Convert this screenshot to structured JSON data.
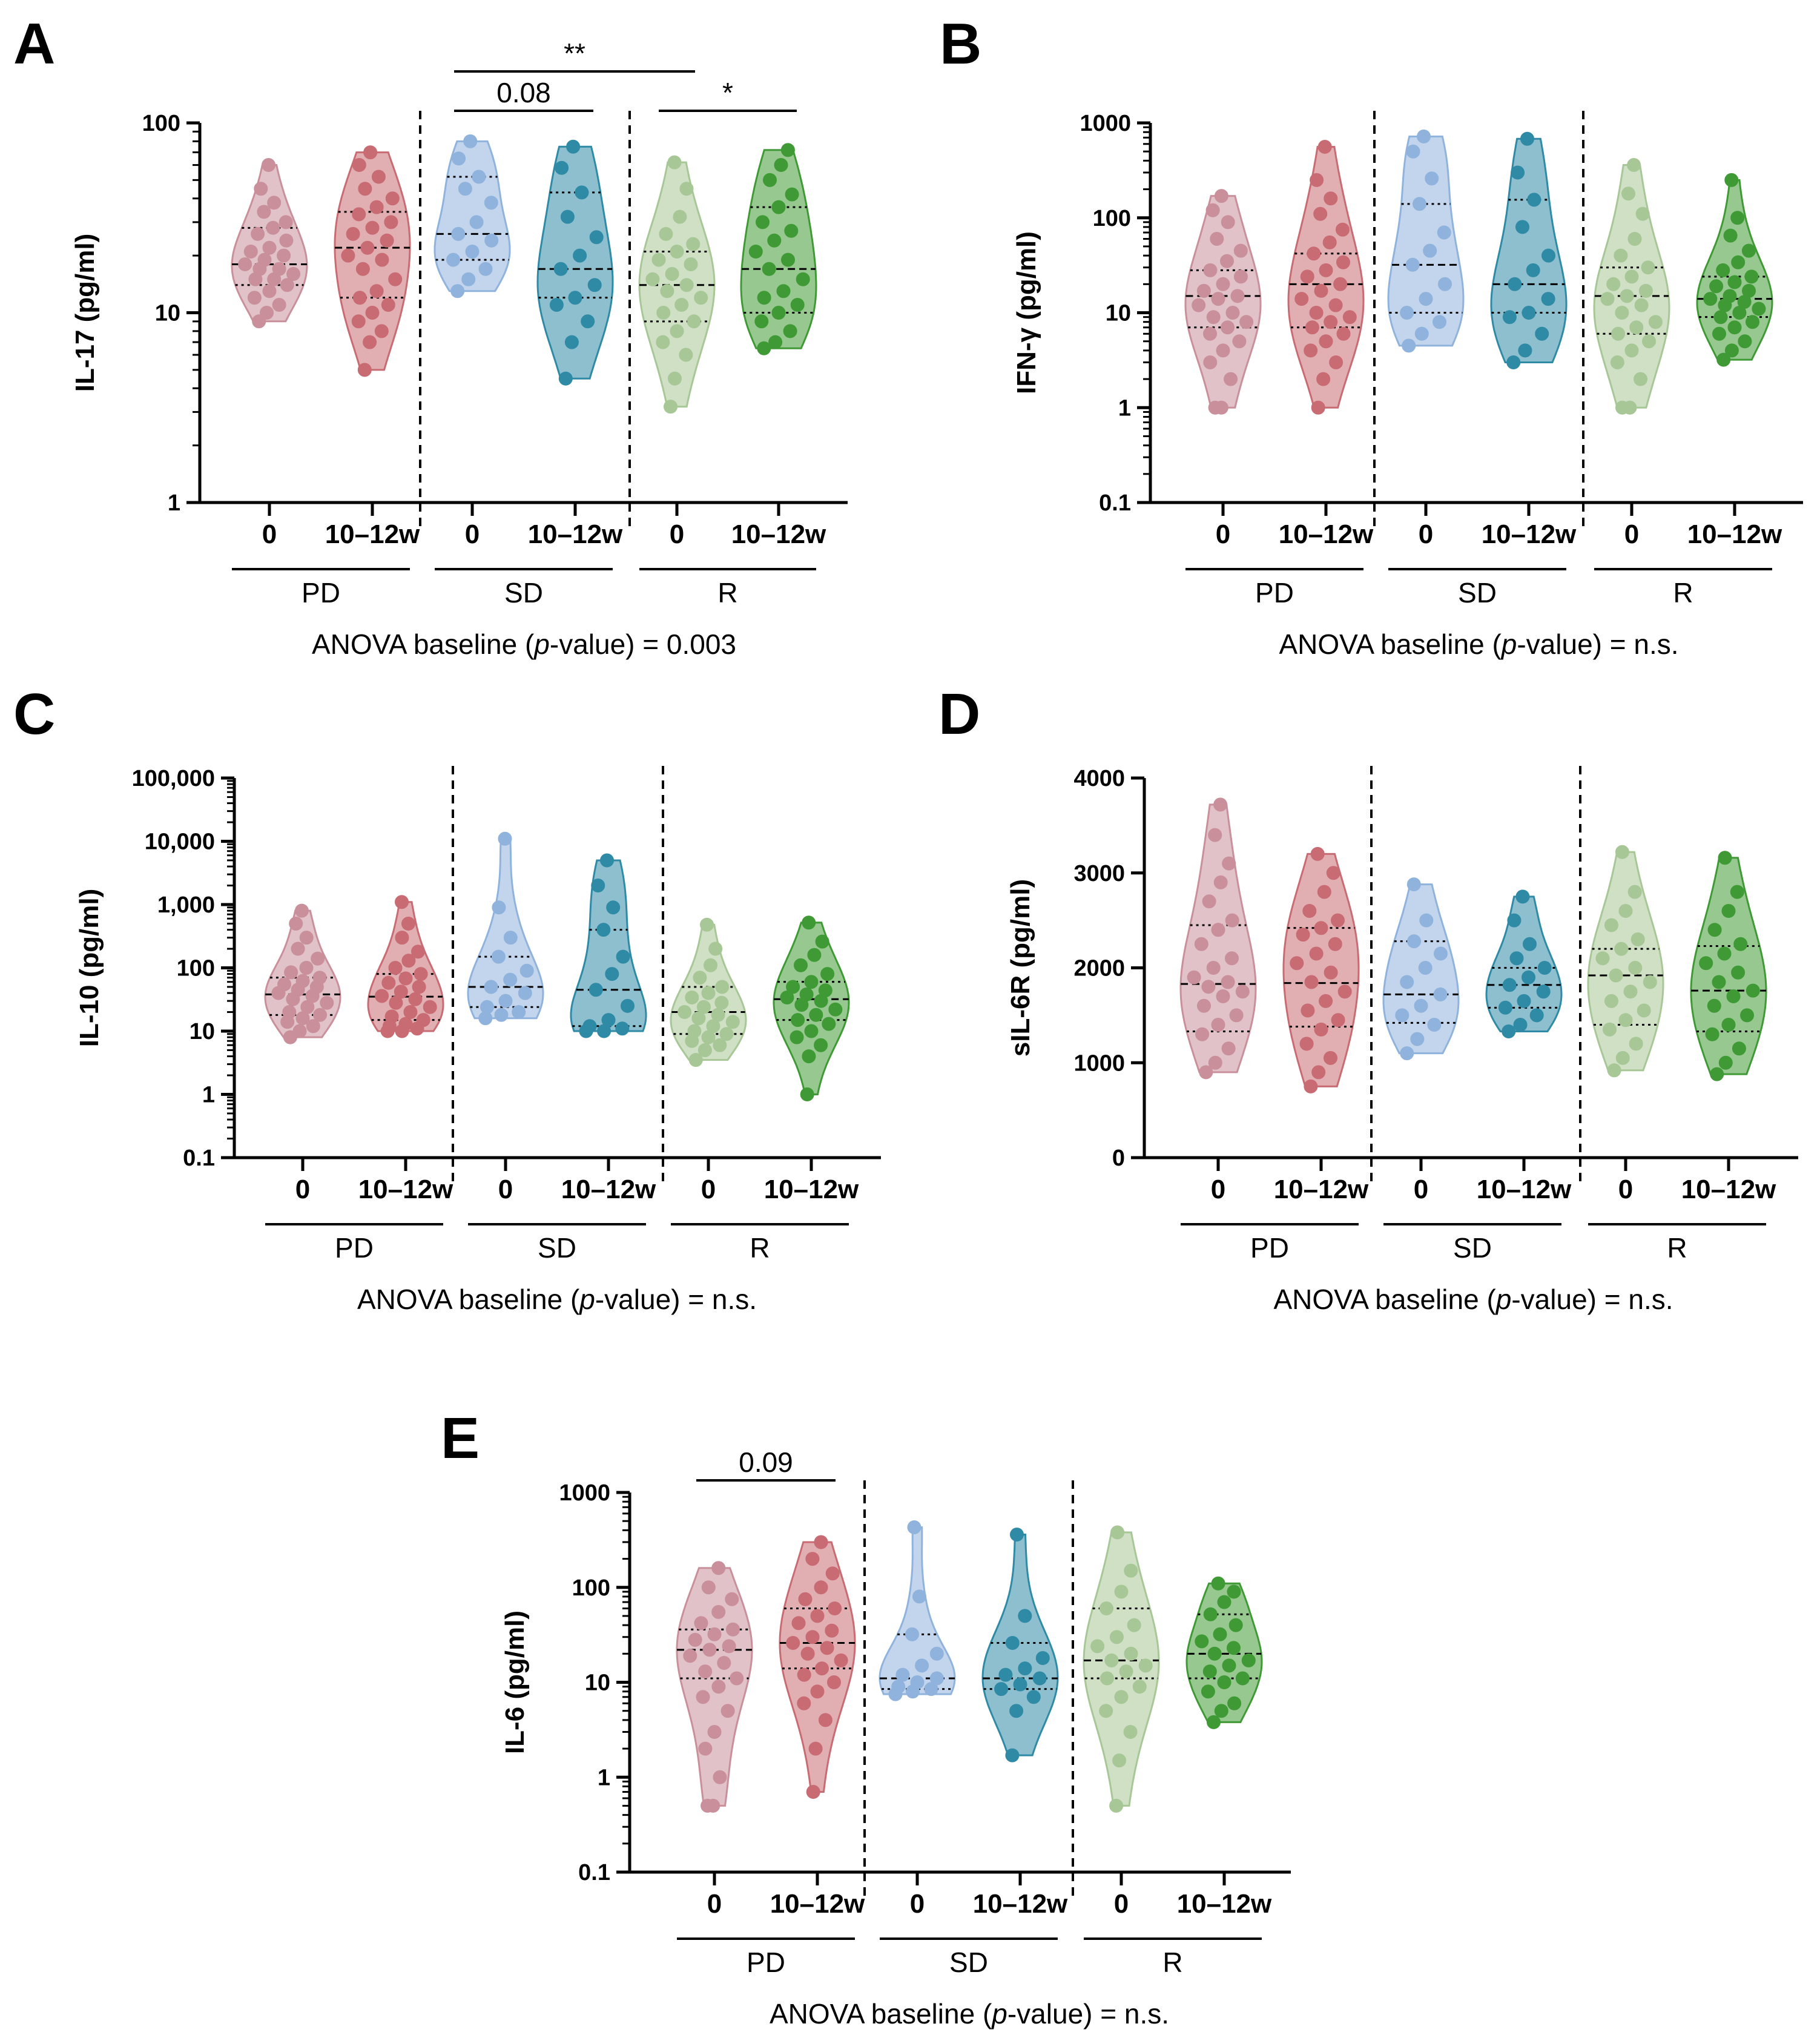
{
  "figure": {
    "colors": {
      "PD_0": "#c98f9a",
      "PD_w": "#c86b73",
      "SD_0": "#8fb3dc",
      "SD_w": "#2f8aa6",
      "R_0": "#a7c796",
      "R_w": "#3f9a35"
    },
    "x_categories": [
      "0",
      "10–12w",
      "0",
      "10–12w",
      "0",
      "10–12w"
    ],
    "groups": [
      "PD",
      "SD",
      "R"
    ]
  },
  "chart_data": [
    {
      "type": "violin",
      "panel": "A",
      "ylabel": "IL-17 (pg/ml)",
      "yscale": "log",
      "ylim": [
        1,
        100
      ],
      "yticks": [
        "1",
        "10",
        "100"
      ],
      "ytick_values": [
        1,
        10,
        100
      ],
      "footnote_pre": "ANOVA baseline (",
      "footnote_p": "p",
      "footnote_post": "-value) = 0.003",
      "brackets": [
        {
          "from": 2,
          "to": 3,
          "label": "0.08",
          "level": 1
        },
        {
          "from": 2,
          "to": 4,
          "label": "**",
          "level": 2
        },
        {
          "from": 4,
          "to": 5,
          "label": "*",
          "level": 1
        }
      ],
      "series": [
        {
          "name": "PD 0",
          "min": 9,
          "max": 60,
          "median": 18,
          "q1": 14,
          "q3": 28,
          "values": [
            9,
            10,
            11,
            12,
            13,
            14,
            15,
            15,
            16,
            17,
            17,
            18,
            19,
            20,
            21,
            22,
            24,
            26,
            28,
            30,
            34,
            38,
            45,
            60
          ]
        },
        {
          "name": "PD 10-12w",
          "min": 5,
          "max": 70,
          "median": 22,
          "q1": 12,
          "q3": 34,
          "values": [
            5,
            7,
            8,
            9,
            10,
            11,
            12,
            13,
            15,
            17,
            19,
            20,
            22,
            24,
            26,
            28,
            30,
            33,
            36,
            40,
            45,
            52,
            60,
            70
          ]
        },
        {
          "name": "SD 0",
          "min": 13,
          "max": 80,
          "median": 26,
          "q1": 19,
          "q3": 52,
          "values": [
            13,
            15,
            17,
            19,
            21,
            24,
            26,
            30,
            38,
            45,
            52,
            65,
            80
          ]
        },
        {
          "name": "SD 10-12w",
          "min": 4.5,
          "max": 75,
          "median": 17,
          "q1": 12,
          "q3": 43,
          "values": [
            4.5,
            7,
            9,
            11,
            12,
            14,
            17,
            20,
            25,
            32,
            43,
            58,
            75
          ]
        },
        {
          "name": "R 0",
          "min": 3.2,
          "max": 62,
          "median": 14,
          "q1": 9,
          "q3": 21,
          "values": [
            3.2,
            4.5,
            6,
            7,
            8,
            9,
            10,
            11,
            12,
            13,
            14,
            15,
            16,
            18,
            19,
            21,
            23,
            26,
            32,
            45,
            62
          ]
        },
        {
          "name": "R 10-12w",
          "min": 6.5,
          "max": 72,
          "median": 17,
          "q1": 10,
          "q3": 36,
          "values": [
            6.5,
            7,
            8,
            9,
            10,
            11,
            12,
            13,
            15,
            17,
            19,
            21,
            24,
            27,
            30,
            36,
            42,
            50,
            60,
            72
          ]
        }
      ]
    },
    {
      "type": "violin",
      "panel": "B",
      "ylabel": "IFN-γ (pg/ml)",
      "yscale": "log",
      "ylim": [
        0.1,
        1000
      ],
      "yticks": [
        "0.1",
        "1",
        "10",
        "100",
        "1000"
      ],
      "ytick_values": [
        0.1,
        1,
        10,
        100,
        1000
      ],
      "footnote_pre": "ANOVA baseline (",
      "footnote_p": "p",
      "footnote_post": "-value) = n.s.",
      "brackets": [],
      "series": [
        {
          "name": "PD 0",
          "min": 1,
          "max": 170,
          "median": 15,
          "q1": 7,
          "q3": 28,
          "values": [
            1,
            1,
            2,
            3,
            4,
            5,
            6,
            7,
            8,
            9,
            10,
            12,
            14,
            15,
            17,
            20,
            24,
            28,
            35,
            45,
            60,
            90,
            120,
            170
          ]
        },
        {
          "name": "PD 10-12w",
          "min": 1,
          "max": 560,
          "median": 20,
          "q1": 7,
          "q3": 42,
          "values": [
            1,
            2,
            3,
            4,
            5,
            6,
            7,
            8,
            9,
            10,
            12,
            14,
            17,
            20,
            24,
            28,
            34,
            42,
            55,
            75,
            110,
            160,
            250,
            560
          ]
        },
        {
          "name": "SD 0",
          "min": 4.5,
          "max": 720,
          "median": 32,
          "q1": 10,
          "q3": 140,
          "values": [
            4.5,
            6,
            8,
            10,
            14,
            20,
            32,
            45,
            70,
            140,
            260,
            500,
            720
          ]
        },
        {
          "name": "SD 10-12w",
          "min": 3,
          "max": 680,
          "median": 20,
          "q1": 10,
          "q3": 155,
          "values": [
            3,
            4,
            6,
            9,
            10,
            14,
            20,
            28,
            40,
            80,
            155,
            300,
            680
          ]
        },
        {
          "name": "R 0",
          "min": 1,
          "max": 360,
          "median": 15,
          "q1": 6,
          "q3": 30,
          "values": [
            1,
            1,
            2,
            3,
            4,
            5,
            6,
            7,
            8,
            10,
            12,
            14,
            15,
            17,
            20,
            24,
            30,
            40,
            60,
            110,
            180,
            360
          ]
        },
        {
          "name": "R 10-12w",
          "min": 3.2,
          "max": 250,
          "median": 14,
          "q1": 9,
          "q3": 24,
          "values": [
            3.2,
            4,
            5,
            6,
            7,
            8,
            9,
            10,
            11,
            12,
            13,
            14,
            15,
            17,
            19,
            21,
            24,
            28,
            34,
            45,
            65,
            100,
            250
          ]
        }
      ]
    },
    {
      "type": "violin",
      "panel": "C",
      "ylabel": "IL-10 (pg/ml)",
      "yscale": "log",
      "ylim": [
        0.1,
        100000
      ],
      "yticks": [
        "0.1",
        "1",
        "10",
        "100",
        "1,000",
        "10,000",
        "100,000"
      ],
      "ytick_values": [
        0.1,
        1,
        10,
        100,
        1000,
        10000,
        100000
      ],
      "footnote_pre": "ANOVA baseline (",
      "footnote_p": "p",
      "footnote_post": "-value) = n.s.",
      "brackets": [],
      "series": [
        {
          "name": "PD 0",
          "min": 8,
          "max": 800,
          "median": 38,
          "q1": 18,
          "q3": 70,
          "values": [
            8,
            10,
            12,
            14,
            16,
            18,
            20,
            24,
            28,
            32,
            36,
            40,
            45,
            50,
            55,
            62,
            70,
            85,
            100,
            140,
            200,
            300,
            500,
            800
          ]
        },
        {
          "name": "PD 10-12w",
          "min": 10,
          "max": 1100,
          "median": 35,
          "q1": 15,
          "q3": 80,
          "values": [
            10,
            10,
            11,
            12,
            13,
            15,
            17,
            20,
            24,
            28,
            32,
            36,
            42,
            50,
            58,
            68,
            80,
            100,
            130,
            180,
            300,
            500,
            1100
          ]
        },
        {
          "name": "SD 0",
          "min": 16,
          "max": 11000,
          "median": 50,
          "q1": 24,
          "q3": 150,
          "values": [
            16,
            18,
            20,
            24,
            30,
            40,
            50,
            65,
            90,
            150,
            300,
            900,
            11000
          ]
        },
        {
          "name": "SD 10-12w",
          "min": 10,
          "max": 5000,
          "median": 45,
          "q1": 12,
          "q3": 400,
          "values": [
            10,
            10,
            11,
            12,
            15,
            25,
            45,
            80,
            150,
            400,
            900,
            2000,
            5000
          ]
        },
        {
          "name": "R 0",
          "min": 3.5,
          "max": 480,
          "median": 20,
          "q1": 9,
          "q3": 50,
          "values": [
            3.5,
            5,
            6,
            7,
            8,
            9,
            10,
            12,
            14,
            16,
            18,
            20,
            24,
            28,
            34,
            40,
            50,
            70,
            110,
            200,
            480
          ]
        },
        {
          "name": "R 10-12w",
          "min": 1,
          "max": 520,
          "median": 32,
          "q1": 15,
          "q3": 60,
          "values": [
            1,
            4,
            6,
            8,
            10,
            13,
            15,
            18,
            22,
            26,
            30,
            34,
            38,
            44,
            50,
            60,
            80,
            110,
            160,
            260,
            520
          ]
        }
      ]
    },
    {
      "type": "violin",
      "panel": "D",
      "ylabel": "sIL-6R (pg/ml)",
      "yscale": "linear",
      "ylim": [
        0,
        4000
      ],
      "yticks": [
        "0",
        "1000",
        "2000",
        "3000",
        "4000"
      ],
      "ytick_values": [
        0,
        1000,
        2000,
        3000,
        4000
      ],
      "footnote_pre": "ANOVA baseline (",
      "footnote_p": "p",
      "footnote_post": "-value) = n.s.",
      "brackets": [],
      "series": [
        {
          "name": "PD 0",
          "min": 900,
          "max": 3720,
          "median": 1830,
          "q1": 1330,
          "q3": 2450,
          "values": [
            900,
            1000,
            1150,
            1300,
            1400,
            1500,
            1600,
            1700,
            1750,
            1800,
            1850,
            1900,
            2000,
            2100,
            2250,
            2400,
            2500,
            2700,
            2900,
            3100,
            3400,
            3720
          ]
        },
        {
          "name": "PD 10-12w",
          "min": 750,
          "max": 3200,
          "median": 1840,
          "q1": 1380,
          "q3": 2420,
          "values": [
            750,
            900,
            1050,
            1200,
            1350,
            1450,
            1550,
            1650,
            1750,
            1850,
            1950,
            2050,
            2150,
            2250,
            2350,
            2420,
            2500,
            2600,
            2800,
            3000,
            3200
          ]
        },
        {
          "name": "SD 0",
          "min": 1100,
          "max": 2880,
          "median": 1720,
          "q1": 1420,
          "q3": 2280,
          "values": [
            1100,
            1250,
            1400,
            1500,
            1600,
            1720,
            1850,
            2000,
            2150,
            2280,
            2500,
            2880
          ]
        },
        {
          "name": "SD 10-12w",
          "min": 1330,
          "max": 2750,
          "median": 1820,
          "q1": 1580,
          "q3": 2000,
          "values": [
            1330,
            1400,
            1500,
            1580,
            1650,
            1750,
            1820,
            1900,
            2000,
            2100,
            2250,
            2500,
            2750
          ]
        },
        {
          "name": "R 0",
          "min": 920,
          "max": 3220,
          "median": 1920,
          "q1": 1400,
          "q3": 2200,
          "values": [
            920,
            1050,
            1200,
            1350,
            1450,
            1550,
            1650,
            1750,
            1850,
            1920,
            2000,
            2100,
            2200,
            2300,
            2450,
            2600,
            2800,
            3220
          ]
        },
        {
          "name": "R 10-12w",
          "min": 880,
          "max": 3160,
          "median": 1760,
          "q1": 1330,
          "q3": 2230,
          "values": [
            880,
            1000,
            1150,
            1300,
            1400,
            1500,
            1600,
            1700,
            1760,
            1850,
            1950,
            2050,
            2150,
            2250,
            2400,
            2600,
            2800,
            3160
          ]
        }
      ]
    },
    {
      "type": "violin",
      "panel": "E",
      "ylabel": "IL-6 (pg/ml)",
      "yscale": "log",
      "ylim": [
        0.1,
        1000
      ],
      "yticks": [
        "0.1",
        "1",
        "10",
        "100",
        "1000"
      ],
      "ytick_values": [
        0.1,
        1,
        10,
        100,
        1000
      ],
      "footnote_pre": "ANOVA baseline (",
      "footnote_p": "p",
      "footnote_post": "-value) = n.s.",
      "brackets": [
        {
          "from": 0,
          "to": 1,
          "label": "0.09",
          "level": 1
        }
      ],
      "series": [
        {
          "name": "PD 0",
          "min": 0.5,
          "max": 160,
          "median": 22,
          "q1": 11,
          "q3": 36,
          "values": [
            0.5,
            0.5,
            1,
            2,
            3,
            5,
            7,
            9,
            11,
            13,
            16,
            19,
            22,
            24,
            28,
            32,
            36,
            42,
            55,
            75,
            100,
            160
          ]
        },
        {
          "name": "PD 10-12w",
          "min": 0.7,
          "max": 300,
          "median": 26,
          "q1": 14,
          "q3": 60,
          "values": [
            0.7,
            2,
            4,
            6,
            8,
            10,
            12,
            14,
            17,
            20,
            23,
            26,
            30,
            35,
            42,
            50,
            60,
            75,
            100,
            140,
            200,
            300
          ]
        },
        {
          "name": "SD 0",
          "min": 7.5,
          "max": 430,
          "median": 11,
          "q1": 8.5,
          "q3": 32,
          "values": [
            7.5,
            8,
            8.5,
            9,
            10,
            11,
            12,
            15,
            20,
            32,
            80,
            430
          ]
        },
        {
          "name": "SD 10-12w",
          "min": 1.7,
          "max": 360,
          "median": 11,
          "q1": 8.5,
          "q3": 26,
          "values": [
            1.7,
            5,
            7,
            8.5,
            9.5,
            11,
            12,
            14,
            18,
            26,
            50,
            360
          ]
        },
        {
          "name": "R 0",
          "min": 0.5,
          "max": 380,
          "median": 17,
          "q1": 11,
          "q3": 60,
          "values": [
            0.5,
            1.5,
            3,
            5,
            7,
            9,
            11,
            13,
            15,
            17,
            20,
            24,
            30,
            40,
            60,
            90,
            150,
            380
          ]
        },
        {
          "name": "R 10-12w",
          "min": 3.8,
          "max": 110,
          "median": 20,
          "q1": 11,
          "q3": 52,
          "values": [
            3.8,
            5,
            6,
            8,
            10,
            11,
            13,
            15,
            17,
            20,
            23,
            27,
            32,
            40,
            52,
            70,
            90,
            110
          ]
        }
      ]
    }
  ]
}
